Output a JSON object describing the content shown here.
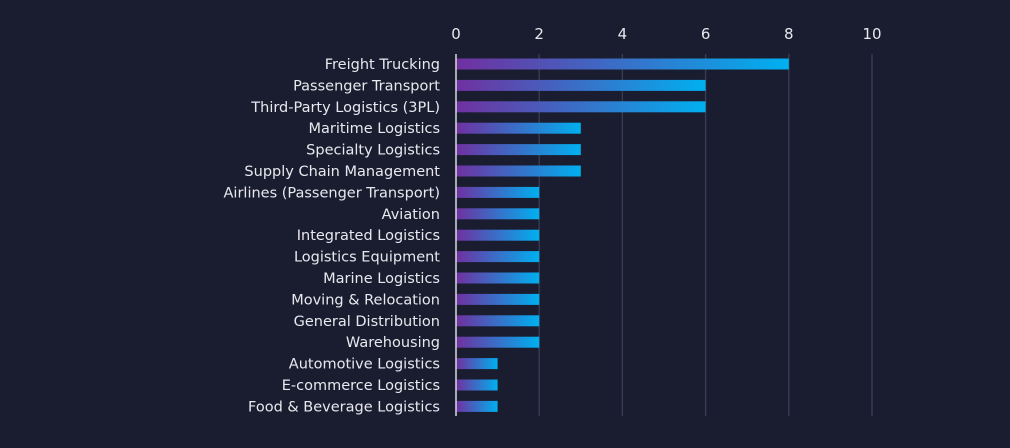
{
  "chart_data": {
    "type": "bar",
    "orientation": "horizontal",
    "title": "",
    "xlabel": "",
    "ylabel": "",
    "xlim": [
      0,
      10
    ],
    "xticks": [
      0,
      2,
      4,
      6,
      8,
      10
    ],
    "xaxis_position": "top",
    "grid": true,
    "categories": [
      "Freight Trucking",
      "Passenger Transport",
      "Third-Party Logistics (3PL)",
      "Maritime Logistics",
      "Specialty Logistics",
      "Supply Chain Management",
      "Airlines (Passenger Transport)",
      "Aviation",
      "Integrated Logistics",
      "Logistics Equipment",
      "Marine Logistics",
      "Moving & Relocation",
      "General Distribution",
      "Warehousing",
      "Automotive Logistics",
      "E-commerce Logistics",
      "Food & Beverage Logistics"
    ],
    "values": [
      8,
      6,
      6,
      3,
      3,
      3,
      2,
      2,
      2,
      2,
      2,
      2,
      2,
      2,
      1,
      1,
      1
    ],
    "colors": {
      "background": "#1a1d30",
      "gradient_start": "#7030a0",
      "gradient_end": "#00b0f0",
      "grid": "#3a3e55",
      "axis": "#d8d8e0"
    }
  }
}
